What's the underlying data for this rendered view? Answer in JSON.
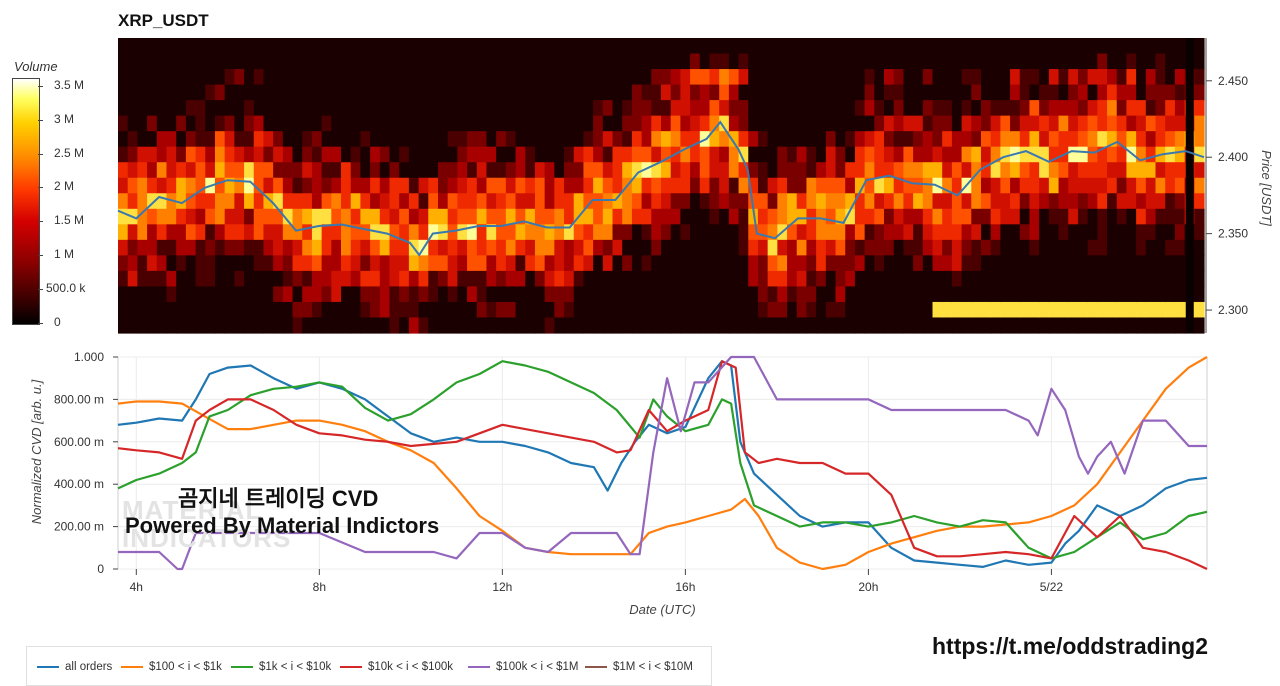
{
  "title": "XRP_USDT",
  "colorbar": {
    "title": "Volume",
    "ticks": [
      "3.5 M",
      "3 M",
      "2.5 M",
      "2 M",
      "1.5 M",
      "1 M",
      "500.0 k",
      "0"
    ],
    "tick_values": [
      3500000,
      3000000,
      2500000,
      2000000,
      1500000,
      1000000,
      500000,
      0
    ],
    "max": 3600000
  },
  "watermark": {
    "line1": "곰지네 트레이딩 CVD",
    "line2": "Powered By Material Indictors",
    "logo_line1": "MATERIAL",
    "logo_line2": "INDICATORS"
  },
  "link_text": "https://t.me/oddstrading2",
  "chart_data": [
    {
      "type": "heatmap",
      "title": "XRP_USDT",
      "ylabel": "Price [USDT]",
      "ylim": [
        2.285,
        2.478
      ],
      "yticks": [
        "2.300",
        "2.350",
        "2.400",
        "2.450"
      ],
      "ytick_values": [
        2.3,
        2.35,
        2.4,
        2.45
      ],
      "xlim": [
        3.6,
        27.4
      ],
      "price_series": {
        "name": "price",
        "color": "#3a78b0",
        "x": [
          3.6,
          4.0,
          4.5,
          5.0,
          5.5,
          6.0,
          6.5,
          7.0,
          7.5,
          8.0,
          8.5,
          9.0,
          9.5,
          10.0,
          10.2,
          10.5,
          11.0,
          11.5,
          12.0,
          12.5,
          13.0,
          13.5,
          14.0,
          14.5,
          15.0,
          15.5,
          16.0,
          16.5,
          16.8,
          17.0,
          17.2,
          17.4,
          17.6,
          18.0,
          18.5,
          19.0,
          19.5,
          20.0,
          20.5,
          21.0,
          21.5,
          22.0,
          22.5,
          23.0,
          23.5,
          24.0,
          24.5,
          25.0,
          25.5,
          26.0,
          26.5,
          27.0,
          27.4
        ],
        "y": [
          2.365,
          2.36,
          2.374,
          2.37,
          2.38,
          2.385,
          2.384,
          2.37,
          2.352,
          2.355,
          2.356,
          2.353,
          2.35,
          2.344,
          2.336,
          2.35,
          2.352,
          2.355,
          2.355,
          2.358,
          2.354,
          2.354,
          2.372,
          2.372,
          2.39,
          2.397,
          2.405,
          2.412,
          2.423,
          2.414,
          2.405,
          2.392,
          2.35,
          2.347,
          2.36,
          2.36,
          2.357,
          2.385,
          2.388,
          2.383,
          2.382,
          2.375,
          2.392,
          2.4,
          2.404,
          2.397,
          2.404,
          2.403,
          2.41,
          2.398,
          2.402,
          2.404,
          2.4
        ]
      }
    },
    {
      "type": "line",
      "xlabel": "Date (UTC)",
      "ylabel": "Normalized CVD [arb. u.]",
      "xlim": [
        3.6,
        27.4
      ],
      "ylim": [
        0,
        1
      ],
      "xticks": [
        "4h",
        "8h",
        "12h",
        "16h",
        "20h",
        "5/22"
      ],
      "xtick_values": [
        4,
        8,
        12,
        16,
        20,
        24
      ],
      "yticks": [
        "0",
        "200.00 m",
        "400.00 m",
        "600.00 m",
        "800.00 m",
        "1.000"
      ],
      "ytick_values": [
        0,
        0.2,
        0.4,
        0.6,
        0.8,
        1.0
      ],
      "legend_position": "bottom-left",
      "series": [
        {
          "name": "all orders",
          "color": "#1f77b4",
          "x": [
            3.6,
            4.0,
            4.5,
            5.0,
            5.3,
            5.6,
            6.0,
            6.5,
            7.0,
            7.5,
            8.0,
            8.5,
            9.0,
            9.5,
            10.0,
            10.5,
            11.0,
            11.5,
            12.0,
            12.5,
            13.0,
            13.5,
            14.0,
            14.3,
            14.6,
            14.9,
            15.2,
            15.6,
            16.0,
            16.5,
            16.8,
            17.0,
            17.2,
            17.5,
            18.0,
            18.5,
            19.0,
            19.5,
            20.0,
            20.5,
            21.0,
            21.5,
            22.0,
            22.5,
            23.0,
            23.5,
            24.0,
            24.3,
            24.6,
            25.0,
            25.5,
            26.0,
            26.5,
            27.0,
            27.4
          ],
          "y": [
            0.68,
            0.69,
            0.71,
            0.7,
            0.8,
            0.92,
            0.95,
            0.96,
            0.9,
            0.85,
            0.88,
            0.85,
            0.8,
            0.72,
            0.64,
            0.6,
            0.62,
            0.6,
            0.6,
            0.58,
            0.55,
            0.5,
            0.48,
            0.37,
            0.5,
            0.6,
            0.68,
            0.64,
            0.67,
            0.9,
            0.98,
            0.96,
            0.6,
            0.45,
            0.35,
            0.25,
            0.2,
            0.22,
            0.22,
            0.1,
            0.04,
            0.03,
            0.02,
            0.01,
            0.04,
            0.02,
            0.03,
            0.12,
            0.18,
            0.3,
            0.25,
            0.3,
            0.38,
            0.42,
            0.43
          ]
        },
        {
          "name": "$100 < i < $1k",
          "color": "#ff7f0e",
          "x": [
            3.6,
            4.0,
            4.5,
            5.0,
            5.5,
            6.0,
            6.5,
            7.0,
            7.5,
            8.0,
            8.5,
            9.0,
            9.5,
            10.0,
            10.5,
            11.0,
            11.5,
            12.0,
            12.5,
            13.0,
            13.5,
            14.0,
            14.5,
            14.8,
            15.2,
            15.6,
            16.0,
            16.5,
            17.0,
            17.3,
            17.6,
            18.0,
            18.5,
            19.0,
            19.5,
            20.0,
            20.5,
            21.0,
            21.5,
            22.0,
            22.5,
            23.0,
            23.5,
            24.0,
            24.5,
            25.0,
            25.5,
            26.0,
            26.5,
            27.0,
            27.4
          ],
          "y": [
            0.78,
            0.79,
            0.79,
            0.78,
            0.72,
            0.66,
            0.66,
            0.68,
            0.7,
            0.7,
            0.68,
            0.65,
            0.6,
            0.56,
            0.5,
            0.38,
            0.25,
            0.18,
            0.1,
            0.08,
            0.07,
            0.07,
            0.07,
            0.07,
            0.17,
            0.2,
            0.22,
            0.25,
            0.28,
            0.33,
            0.25,
            0.1,
            0.03,
            0.0,
            0.02,
            0.08,
            0.12,
            0.15,
            0.18,
            0.2,
            0.2,
            0.21,
            0.22,
            0.25,
            0.3,
            0.4,
            0.55,
            0.7,
            0.85,
            0.95,
            1.0
          ]
        },
        {
          "name": "$1k < i < $10k",
          "color": "#2ca02c",
          "x": [
            3.6,
            4.0,
            4.5,
            5.0,
            5.3,
            5.6,
            6.0,
            6.5,
            7.0,
            7.5,
            8.0,
            8.5,
            9.0,
            9.5,
            10.0,
            10.5,
            11.0,
            11.5,
            12.0,
            12.5,
            13.0,
            13.5,
            14.0,
            14.5,
            15.0,
            15.3,
            15.6,
            16.0,
            16.5,
            16.8,
            17.0,
            17.2,
            17.5,
            18.0,
            18.5,
            19.0,
            19.5,
            20.0,
            20.5,
            21.0,
            21.5,
            22.0,
            22.5,
            23.0,
            23.5,
            24.0,
            24.5,
            25.0,
            25.5,
            26.0,
            26.5,
            27.0,
            27.4
          ],
          "y": [
            0.38,
            0.42,
            0.45,
            0.5,
            0.55,
            0.72,
            0.75,
            0.82,
            0.85,
            0.86,
            0.88,
            0.86,
            0.76,
            0.7,
            0.73,
            0.8,
            0.88,
            0.92,
            0.98,
            0.96,
            0.93,
            0.88,
            0.83,
            0.75,
            0.62,
            0.8,
            0.72,
            0.65,
            0.68,
            0.8,
            0.78,
            0.5,
            0.3,
            0.25,
            0.2,
            0.22,
            0.22,
            0.2,
            0.22,
            0.25,
            0.22,
            0.2,
            0.23,
            0.22,
            0.1,
            0.05,
            0.08,
            0.15,
            0.22,
            0.14,
            0.17,
            0.25,
            0.27
          ]
        },
        {
          "name": "$10k < i < $100k",
          "color": "#d62728",
          "x": [
            3.6,
            4.0,
            4.5,
            5.0,
            5.3,
            5.6,
            6.0,
            6.5,
            7.0,
            7.5,
            8.0,
            8.5,
            9.0,
            9.5,
            10.0,
            10.5,
            11.0,
            11.5,
            12.0,
            12.5,
            13.0,
            13.5,
            14.0,
            14.5,
            14.8,
            15.2,
            15.6,
            16.0,
            16.5,
            16.8,
            17.1,
            17.3,
            17.6,
            18.0,
            18.5,
            19.0,
            19.5,
            20.0,
            20.5,
            21.0,
            21.5,
            22.0,
            22.5,
            23.0,
            23.5,
            24.0,
            24.5,
            25.0,
            25.5,
            26.0,
            26.5,
            27.0,
            27.4
          ],
          "y": [
            0.57,
            0.56,
            0.55,
            0.52,
            0.7,
            0.75,
            0.8,
            0.8,
            0.75,
            0.68,
            0.64,
            0.63,
            0.61,
            0.6,
            0.58,
            0.59,
            0.6,
            0.64,
            0.68,
            0.66,
            0.64,
            0.62,
            0.6,
            0.55,
            0.56,
            0.75,
            0.65,
            0.7,
            0.75,
            0.98,
            0.95,
            0.55,
            0.5,
            0.52,
            0.5,
            0.5,
            0.45,
            0.45,
            0.35,
            0.1,
            0.06,
            0.06,
            0.07,
            0.08,
            0.07,
            0.05,
            0.25,
            0.15,
            0.25,
            0.1,
            0.08,
            0.04,
            0.0
          ]
        },
        {
          "name": "$100k < i < $1M",
          "color": "#9467bd",
          "x": [
            3.6,
            4.0,
            4.5,
            4.9,
            5.0,
            5.3,
            6.0,
            7.0,
            8.0,
            9.0,
            9.5,
            10.0,
            10.5,
            11.0,
            11.5,
            12.0,
            12.5,
            13.0,
            13.5,
            14.0,
            14.5,
            14.8,
            15.0,
            15.3,
            15.6,
            15.9,
            16.2,
            16.5,
            17.0,
            17.5,
            18.0,
            19.0,
            19.5,
            20.0,
            20.5,
            21.0,
            22.0,
            22.5,
            23.0,
            23.5,
            23.7,
            24.0,
            24.3,
            24.6,
            24.8,
            25.0,
            25.3,
            25.6,
            26.0,
            26.5,
            27.0,
            27.4
          ],
          "y": [
            0.08,
            0.08,
            0.08,
            0.0,
            0.0,
            0.17,
            0.17,
            0.17,
            0.17,
            0.08,
            0.08,
            0.08,
            0.08,
            0.05,
            0.17,
            0.17,
            0.1,
            0.08,
            0.17,
            0.17,
            0.17,
            0.07,
            0.07,
            0.55,
            0.9,
            0.65,
            0.88,
            0.88,
            1.0,
            1.0,
            0.8,
            0.8,
            0.8,
            0.8,
            0.75,
            0.75,
            0.75,
            0.75,
            0.75,
            0.7,
            0.63,
            0.85,
            0.75,
            0.53,
            0.45,
            0.53,
            0.6,
            0.45,
            0.7,
            0.7,
            0.58,
            0.58
          ]
        },
        {
          "name": "$1M < i < $10M",
          "color": "#8c564b",
          "x": [],
          "y": []
        }
      ]
    }
  ]
}
